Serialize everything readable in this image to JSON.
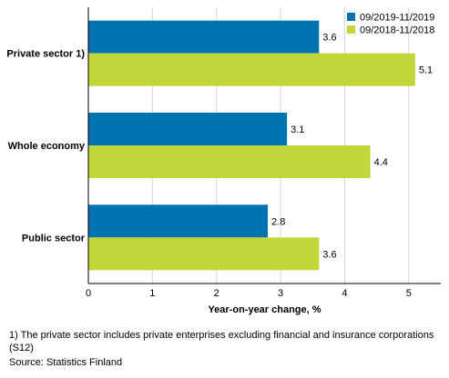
{
  "chart_data": {
    "type": "bar",
    "orientation": "horizontal",
    "categories": [
      "Private sector 1)",
      "Whole economy",
      "Public sector"
    ],
    "series": [
      {
        "name": "09/2019-11/2019",
        "color": "#0073b0",
        "values": [
          3.6,
          3.1,
          2.8
        ]
      },
      {
        "name": "09/2018-11/2018",
        "color": "#c2d63a",
        "values": [
          5.1,
          4.4,
          3.6
        ]
      }
    ],
    "data_labels": [
      [
        "3.6",
        "3.1",
        "2.8"
      ],
      [
        "5.1",
        "4.4",
        "3.6"
      ]
    ],
    "xlabel": "Year-on-year change, %",
    "ylabel": "",
    "xlim": [
      0,
      5.5
    ],
    "x_ticks": [
      "0",
      "1",
      "2",
      "3",
      "4",
      "5"
    ],
    "grid": "vertical",
    "legend_position": "top-right"
  },
  "footnote": "1) The private sector includes private enterprises excluding financial and insurance corporations (S12)",
  "source": "Source: Statistics Finland"
}
